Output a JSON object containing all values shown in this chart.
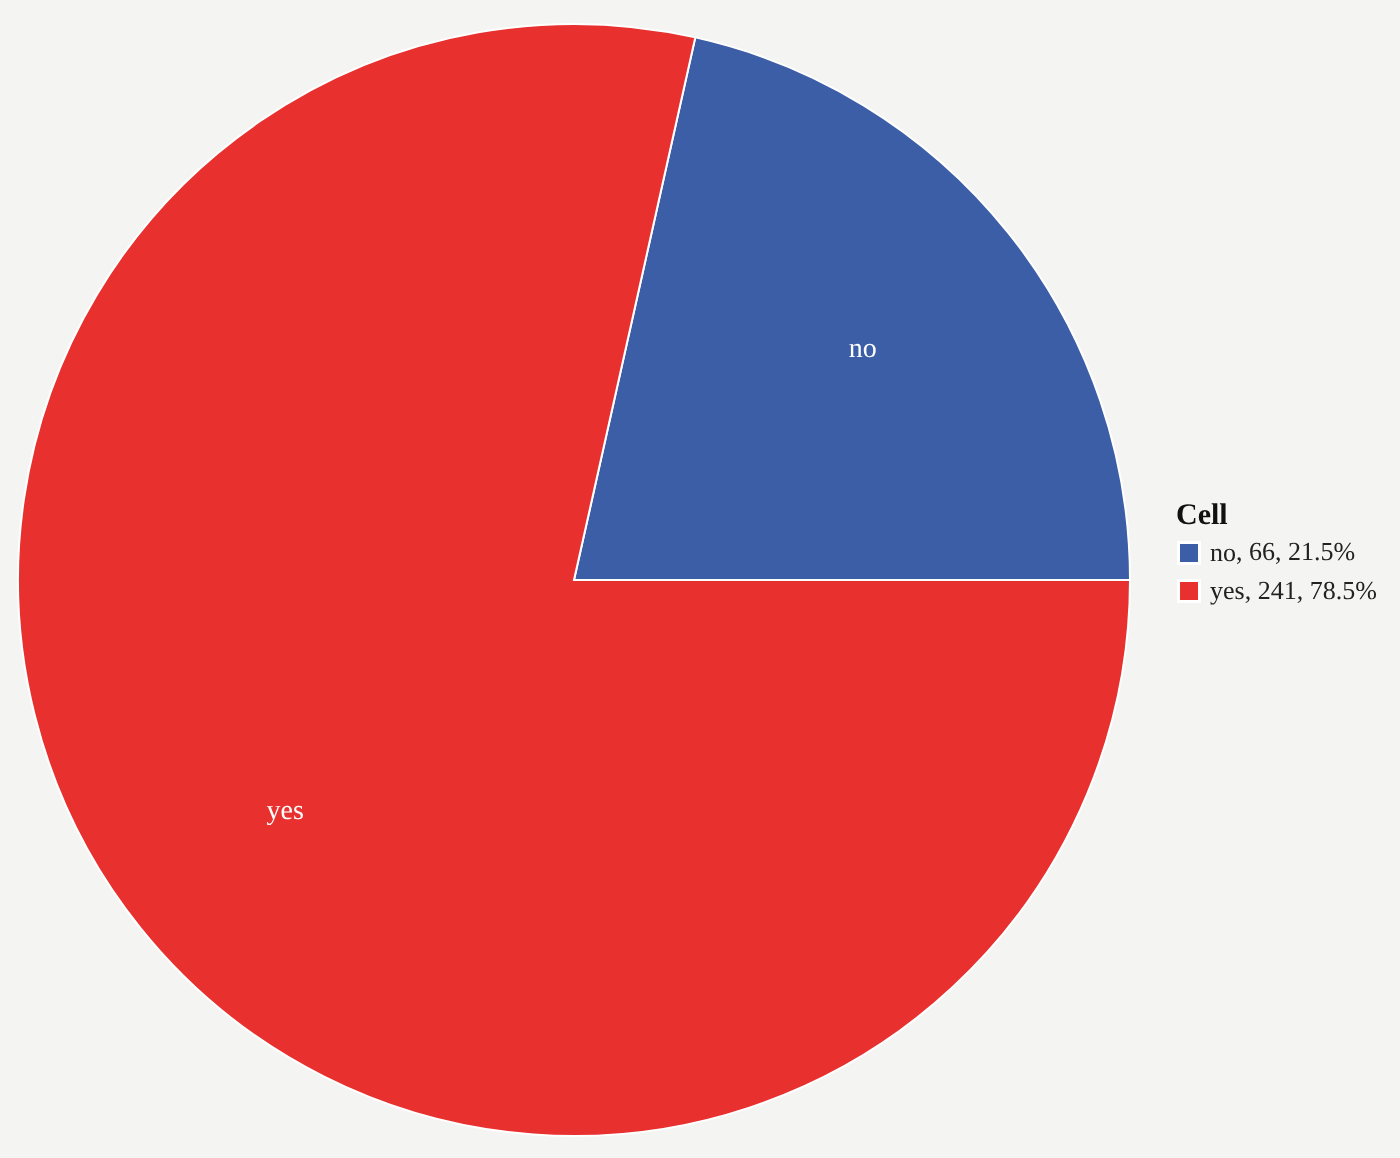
{
  "chart_data": {
    "type": "pie",
    "legend_title": "Cell",
    "categories": [
      "no",
      "yes"
    ],
    "values": [
      66,
      241
    ],
    "colors": [
      "#3b5ea6",
      "#e8312f"
    ],
    "value_labels": [
      ", 66, 21.5%",
      ", 241, 78.5%"
    ],
    "legend": "right"
  }
}
